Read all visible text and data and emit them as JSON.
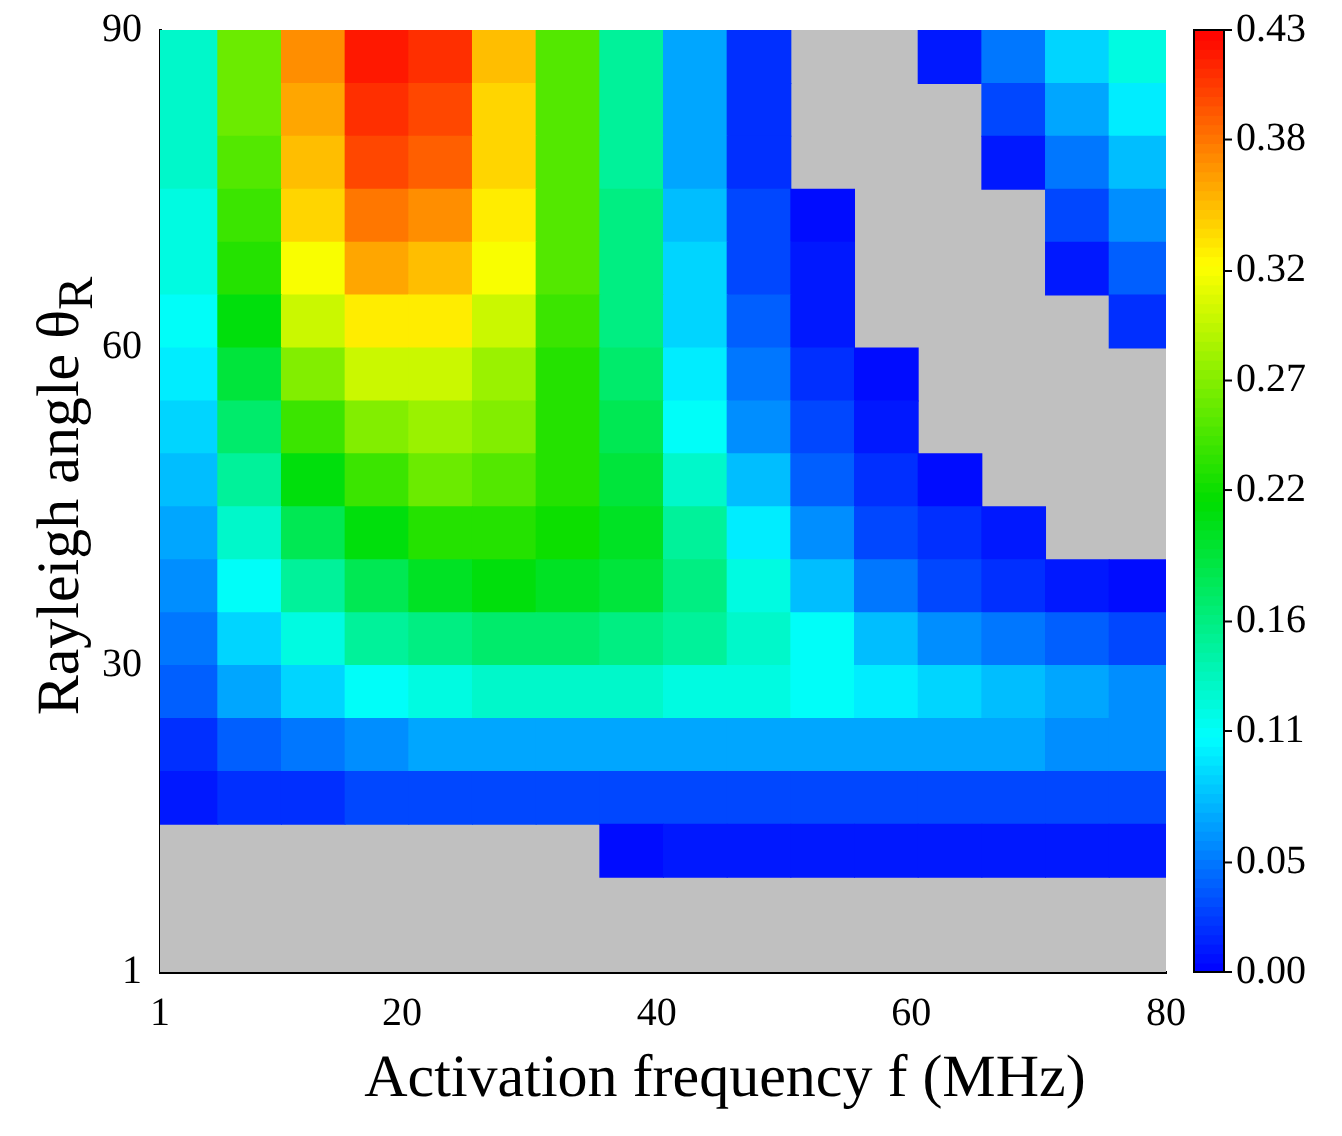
{
  "chart_data": {
    "type": "heatmap",
    "xlabel": "Activation frequency f (MHz)",
    "ylabel": "Rayleigh angle θ$_{R}$",
    "x": [
      3,
      8,
      13,
      18,
      23,
      28,
      33,
      38,
      43,
      48,
      53,
      58,
      63,
      68,
      73,
      78
    ],
    "y": [
      87.5,
      82.5,
      77.5,
      72.5,
      67.5,
      62.5,
      57.5,
      52.5,
      47.5,
      42.5,
      37.5,
      32.5,
      27.5,
      22.5,
      17.5,
      12.5
    ],
    "xlim": [
      1,
      80
    ],
    "ylim": [
      1,
      90
    ],
    "xticks": [
      1,
      20,
      40,
      60,
      80
    ],
    "yticks": [
      1,
      30,
      60,
      90
    ],
    "clim": [
      0,
      0.43
    ],
    "cticks": [
      {
        "value": 0,
        "label": "0.00"
      },
      {
        "value": 0.05,
        "label": "0.05"
      },
      {
        "value": 0.11,
        "label": "0.11"
      },
      {
        "value": 0.16,
        "label": "0.16"
      },
      {
        "value": 0.22,
        "label": "0.22"
      },
      {
        "value": 0.27,
        "label": "0.27"
      },
      {
        "value": 0.32,
        "label": "0.32"
      },
      {
        "value": 0.38,
        "label": "0.38"
      },
      {
        "value": 0.43,
        "label": "0.43"
      }
    ],
    "cells": [
      [
        0.13,
        0.26,
        0.37,
        0.42,
        0.41,
        0.35,
        0.25,
        0.15,
        0.07,
        0.02,
        null,
        null,
        0.01,
        0.05,
        0.09,
        0.12
      ],
      [
        0.13,
        0.26,
        0.36,
        0.41,
        0.4,
        0.34,
        0.25,
        0.15,
        0.07,
        0.02,
        null,
        null,
        null,
        0.03,
        0.07,
        0.1
      ],
      [
        0.13,
        0.25,
        0.35,
        0.4,
        0.39,
        0.34,
        0.25,
        0.15,
        0.07,
        0.02,
        null,
        null,
        null,
        0.01,
        0.05,
        0.08
      ],
      [
        0.12,
        0.24,
        0.34,
        0.38,
        0.37,
        0.33,
        0.25,
        0.16,
        0.08,
        0.03,
        0.005,
        null,
        null,
        null,
        0.03,
        0.06
      ],
      [
        0.12,
        0.23,
        0.32,
        0.36,
        0.35,
        0.32,
        0.25,
        0.16,
        0.09,
        0.03,
        0.01,
        null,
        null,
        null,
        0.01,
        0.04
      ],
      [
        0.11,
        0.21,
        0.3,
        0.33,
        0.33,
        0.3,
        0.24,
        0.16,
        0.09,
        0.04,
        0.01,
        null,
        null,
        null,
        null,
        0.02
      ],
      [
        0.1,
        0.19,
        0.27,
        0.3,
        0.3,
        0.28,
        0.23,
        0.17,
        0.1,
        0.05,
        0.02,
        0.005,
        null,
        null,
        null,
        null
      ],
      [
        0.09,
        0.17,
        0.24,
        0.27,
        0.28,
        0.27,
        0.23,
        0.18,
        0.11,
        0.06,
        0.03,
        0.01,
        null,
        null,
        null,
        null
      ],
      [
        0.08,
        0.15,
        0.21,
        0.24,
        0.26,
        0.25,
        0.23,
        0.19,
        0.13,
        0.08,
        0.04,
        0.02,
        0.005,
        null,
        null,
        null
      ],
      [
        0.07,
        0.13,
        0.18,
        0.21,
        0.23,
        0.23,
        0.22,
        0.2,
        0.15,
        0.1,
        0.06,
        0.03,
        0.02,
        0.01,
        null,
        null
      ],
      [
        0.06,
        0.11,
        0.15,
        0.18,
        0.2,
        0.21,
        0.2,
        0.19,
        0.16,
        0.12,
        0.08,
        0.05,
        0.03,
        0.02,
        0.01,
        0.005
      ],
      [
        0.05,
        0.09,
        0.12,
        0.15,
        0.16,
        0.17,
        0.17,
        0.16,
        0.15,
        0.13,
        0.11,
        0.08,
        0.06,
        0.05,
        0.04,
        0.03
      ],
      [
        0.04,
        0.07,
        0.09,
        0.11,
        0.12,
        0.13,
        0.13,
        0.13,
        0.12,
        0.12,
        0.11,
        0.1,
        0.09,
        0.08,
        0.07,
        0.06
      ],
      [
        0.02,
        0.04,
        0.05,
        0.06,
        0.07,
        0.07,
        0.07,
        0.07,
        0.07,
        0.07,
        0.07,
        0.07,
        0.07,
        0.07,
        0.06,
        0.06
      ],
      [
        0.01,
        0.02,
        0.02,
        0.03,
        0.03,
        0.03,
        0.03,
        0.03,
        0.03,
        0.03,
        0.03,
        0.03,
        0.03,
        0.03,
        0.03,
        0.03
      ],
      [
        null,
        null,
        null,
        null,
        null,
        null,
        null,
        0.005,
        0.01,
        0.01,
        0.01,
        0.01,
        0.01,
        0.01,
        0.01,
        0.01
      ]
    ]
  }
}
